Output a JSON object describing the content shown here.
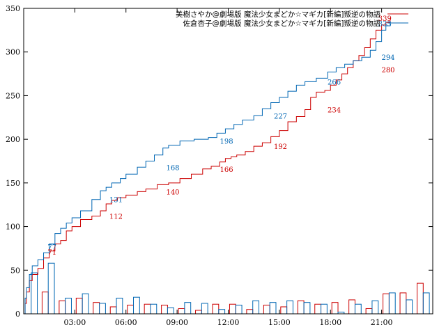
{
  "chart_data": {
    "type": "line",
    "title": "",
    "xlabel": "",
    "ylabel": "",
    "ylim": [
      0,
      350
    ],
    "xlim": [
      0,
      1440
    ],
    "x_unit": "minutes since 00:00",
    "grid": false,
    "legend_position": "top-right",
    "yticks": [
      0,
      50,
      100,
      150,
      200,
      250,
      300,
      350
    ],
    "xticks": [
      {
        "x": 180,
        "label": "03:00"
      },
      {
        "x": 360,
        "label": "06:00"
      },
      {
        "x": 540,
        "label": "09:00"
      },
      {
        "x": 720,
        "label": "12:00"
      },
      {
        "x": 900,
        "label": "15:00"
      },
      {
        "x": 1080,
        "label": "18:00"
      },
      {
        "x": 1260,
        "label": "21:00"
      }
    ],
    "series": [
      {
        "name": "美樹さやか@劇場版 魔法少女まどか☆マギカ[新編]叛逆の物語",
        "color": "#cc0000",
        "end_label": "339",
        "points": [
          [
            0,
            0
          ],
          [
            5,
            12
          ],
          [
            10,
            25
          ],
          [
            20,
            38
          ],
          [
            30,
            45
          ],
          [
            50,
            52
          ],
          [
            70,
            64
          ],
          [
            90,
            72
          ],
          [
            110,
            80
          ],
          [
            130,
            84
          ],
          [
            150,
            95
          ],
          [
            170,
            100
          ],
          [
            200,
            108
          ],
          [
            240,
            112
          ],
          [
            270,
            118
          ],
          [
            290,
            126
          ],
          [
            310,
            130
          ],
          [
            330,
            133
          ],
          [
            360,
            136
          ],
          [
            400,
            140
          ],
          [
            430,
            143
          ],
          [
            470,
            148
          ],
          [
            510,
            150
          ],
          [
            550,
            155
          ],
          [
            590,
            160
          ],
          [
            630,
            166
          ],
          [
            660,
            169
          ],
          [
            690,
            174
          ],
          [
            710,
            178
          ],
          [
            730,
            180
          ],
          [
            750,
            182
          ],
          [
            780,
            186
          ],
          [
            810,
            192
          ],
          [
            840,
            196
          ],
          [
            870,
            203
          ],
          [
            900,
            210
          ],
          [
            930,
            220
          ],
          [
            960,
            226
          ],
          [
            990,
            234
          ],
          [
            1010,
            248
          ],
          [
            1030,
            254
          ],
          [
            1060,
            256
          ],
          [
            1080,
            262
          ],
          [
            1100,
            268
          ],
          [
            1120,
            275
          ],
          [
            1140,
            282
          ],
          [
            1160,
            290
          ],
          [
            1180,
            296
          ],
          [
            1200,
            305
          ],
          [
            1220,
            315
          ],
          [
            1240,
            325
          ],
          [
            1260,
            331
          ],
          [
            1275,
            334
          ],
          [
            1290,
            339
          ]
        ],
        "annotations": [
          {
            "x": 100,
            "y": 71,
            "label": "71"
          },
          {
            "x": 325,
            "y": 112,
            "label": "112"
          },
          {
            "x": 525,
            "y": 140,
            "label": "140"
          },
          {
            "x": 714,
            "y": 166,
            "label": "166"
          },
          {
            "x": 904,
            "y": 192,
            "label": "192"
          },
          {
            "x": 1093,
            "y": 234,
            "label": "234"
          },
          {
            "x": 1283,
            "y": 280,
            "label": "280"
          }
        ],
        "bars": [
          0,
          25,
          15,
          18,
          13,
          8,
          10,
          11,
          10,
          6,
          4,
          11,
          11,
          5,
          10,
          8,
          15,
          11,
          13,
          16,
          6,
          23,
          24,
          35
        ]
      },
      {
        "name": "佐倉杏子@劇場版 魔法少女まどか☆マギカ[新編]叛逆の物語",
        "color": "#0066b3",
        "end_label": "333",
        "points": [
          [
            0,
            0
          ],
          [
            5,
            18
          ],
          [
            10,
            30
          ],
          [
            20,
            45
          ],
          [
            30,
            55
          ],
          [
            50,
            62
          ],
          [
            70,
            70
          ],
          [
            90,
            80
          ],
          [
            110,
            92
          ],
          [
            130,
            98
          ],
          [
            150,
            104
          ],
          [
            170,
            110
          ],
          [
            200,
            118
          ],
          [
            240,
            131
          ],
          [
            270,
            141
          ],
          [
            290,
            145
          ],
          [
            310,
            150
          ],
          [
            340,
            155
          ],
          [
            360,
            160
          ],
          [
            400,
            168
          ],
          [
            430,
            175
          ],
          [
            460,
            182
          ],
          [
            490,
            190
          ],
          [
            510,
            193
          ],
          [
            550,
            198
          ],
          [
            600,
            200
          ],
          [
            650,
            202
          ],
          [
            680,
            207
          ],
          [
            710,
            212
          ],
          [
            740,
            217
          ],
          [
            770,
            222
          ],
          [
            810,
            227
          ],
          [
            840,
            235
          ],
          [
            870,
            242
          ],
          [
            900,
            248
          ],
          [
            930,
            255
          ],
          [
            960,
            262
          ],
          [
            990,
            266
          ],
          [
            1030,
            270
          ],
          [
            1070,
            277
          ],
          [
            1100,
            282
          ],
          [
            1130,
            286
          ],
          [
            1160,
            290
          ],
          [
            1190,
            294
          ],
          [
            1220,
            302
          ],
          [
            1240,
            312
          ],
          [
            1260,
            325
          ],
          [
            1275,
            330
          ],
          [
            1290,
            333
          ]
        ],
        "annotations": [
          {
            "x": 100,
            "y": 77,
            "label": "77"
          },
          {
            "x": 325,
            "y": 131,
            "label": "131"
          },
          {
            "x": 525,
            "y": 168,
            "label": "168"
          },
          {
            "x": 714,
            "y": 198,
            "label": "198"
          },
          {
            "x": 904,
            "y": 227,
            "label": "227"
          },
          {
            "x": 1093,
            "y": 266,
            "label": "266"
          },
          {
            "x": 1283,
            "y": 294,
            "label": "294"
          }
        ],
        "bars": [
          47,
          58,
          18,
          23,
          12,
          18,
          19,
          11,
          7,
          13,
          12,
          5,
          10,
          15,
          13,
          15,
          13,
          11,
          2,
          11,
          15,
          24,
          16,
          24
        ]
      }
    ]
  }
}
